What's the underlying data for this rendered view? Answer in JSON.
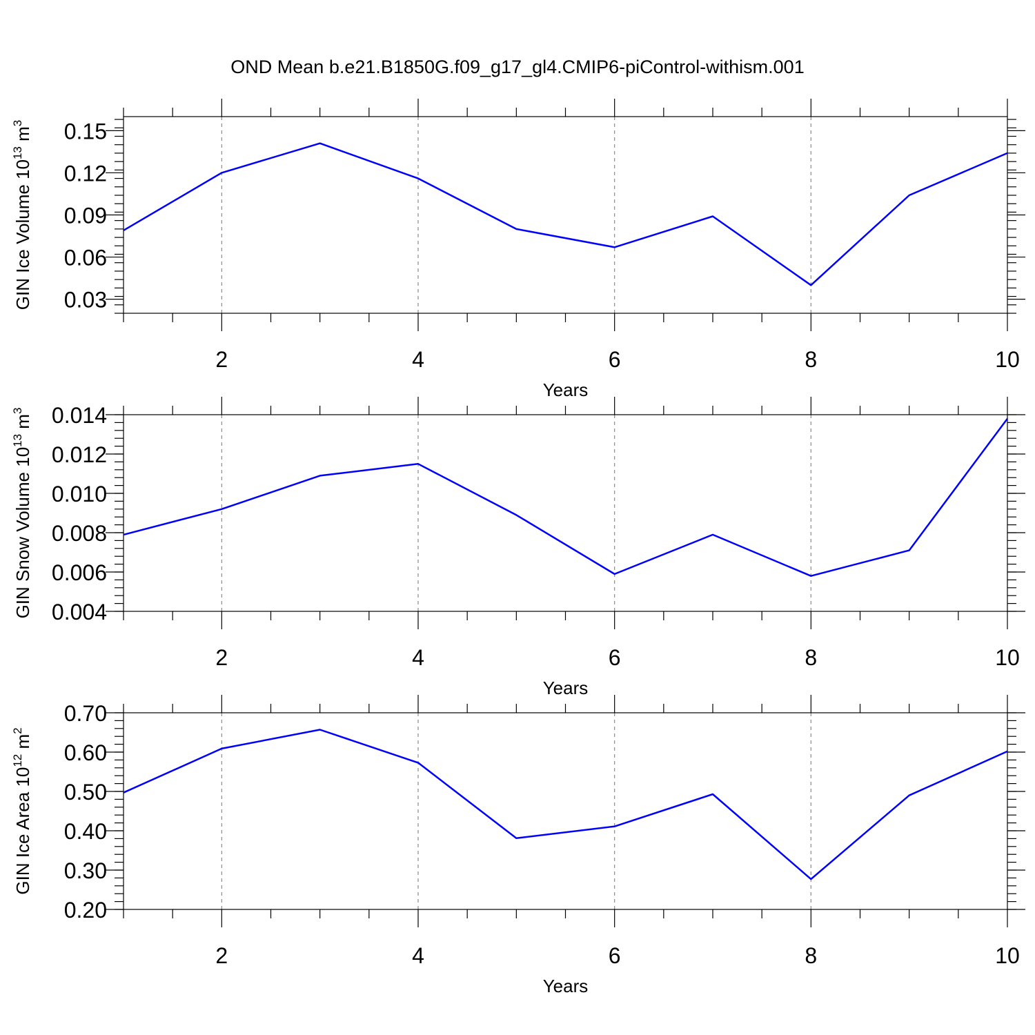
{
  "title": "OND Mean b.e21.B1850G.f09_g17_gl4.CMIP6-piControl-withism.001",
  "colors": {
    "line": "#0000ff",
    "grid": "#8a8a8a",
    "axis": "#000000"
  },
  "chart_data": [
    {
      "type": "line",
      "xlabel": "Years",
      "ylabel": {
        "text": "GIN Ice Volume 10",
        "sup": "13",
        "unit": " m",
        "unit_sup": "3"
      },
      "xlim": [
        1,
        10
      ],
      "ylim": [
        0.02,
        0.16
      ],
      "x_ticks": [
        2,
        4,
        6,
        8,
        10
      ],
      "y_ticks": [
        0.03,
        0.06,
        0.09,
        0.12,
        0.15
      ],
      "y_tick_labels": [
        "0.03",
        "0.06",
        "0.09",
        "0.12",
        "0.15"
      ],
      "y_minor_step": 0.006,
      "grid": "dashed vertical at major x ticks",
      "series": [
        {
          "x": [
            1,
            2,
            3,
            4,
            5,
            6,
            7,
            8,
            9,
            10
          ],
          "values": [
            0.079,
            0.12,
            0.141,
            0.116,
            0.08,
            0.067,
            0.089,
            0.04,
            0.104,
            0.134
          ]
        }
      ]
    },
    {
      "type": "line",
      "xlabel": "Years",
      "ylabel": {
        "text": "GIN Snow Volume 10",
        "sup": "13",
        "unit": " m",
        "unit_sup": "3"
      },
      "xlim": [
        1,
        10
      ],
      "ylim": [
        0.004,
        0.014
      ],
      "x_ticks": [
        2,
        4,
        6,
        8,
        10
      ],
      "y_ticks": [
        0.004,
        0.006,
        0.008,
        0.01,
        0.012,
        0.014
      ],
      "y_tick_labels": [
        "0.004",
        "0.006",
        "0.008",
        "0.010",
        "0.012",
        "0.014"
      ],
      "y_minor_step": 0.0004,
      "grid": "dashed vertical at major x ticks",
      "series": [
        {
          "x": [
            1,
            2,
            3,
            4,
            5,
            6,
            7,
            8,
            9,
            10
          ],
          "values": [
            0.0079,
            0.0092,
            0.0109,
            0.0115,
            0.0089,
            0.0059,
            0.0079,
            0.0058,
            0.0071,
            0.0138
          ]
        }
      ]
    },
    {
      "type": "line",
      "xlabel": "Years",
      "ylabel": {
        "text": "GIN Ice Area 10",
        "sup": "12",
        "unit": " m",
        "unit_sup": "2"
      },
      "xlim": [
        1,
        10
      ],
      "ylim": [
        0.2,
        0.7
      ],
      "x_ticks": [
        2,
        4,
        6,
        8,
        10
      ],
      "y_ticks": [
        0.2,
        0.3,
        0.4,
        0.5,
        0.6,
        0.7
      ],
      "y_tick_labels": [
        "0.20",
        "0.30",
        "0.40",
        "0.50",
        "0.60",
        "0.70"
      ],
      "y_minor_step": 0.02,
      "grid": "dashed vertical at major x ticks",
      "series": [
        {
          "x": [
            1,
            2,
            3,
            4,
            5,
            6,
            7,
            8,
            9,
            10
          ],
          "values": [
            0.497,
            0.609,
            0.657,
            0.573,
            0.381,
            0.411,
            0.493,
            0.277,
            0.49,
            0.602
          ]
        }
      ]
    }
  ]
}
